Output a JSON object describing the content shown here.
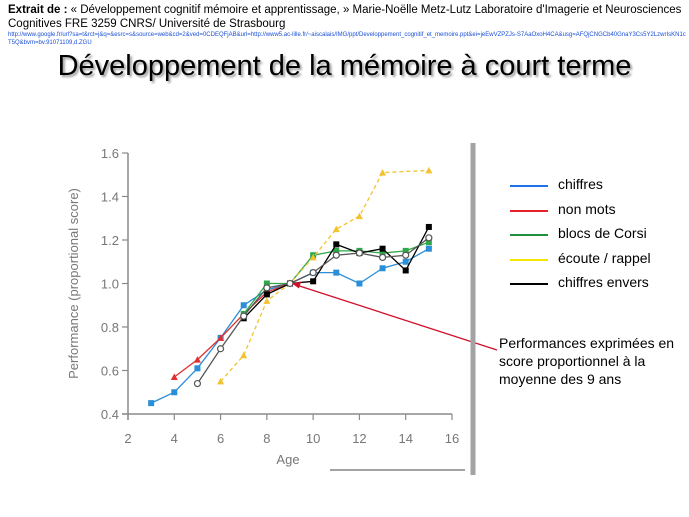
{
  "citation": {
    "prefix": "Extrait de :",
    "text": " « Développement cognitif mémoire et apprentissage, » Marie-Noëlle Metz-Lutz Laboratoire d'Imagerie et Neurosciences Cognitives FRE 3259 CNRS/ Université de Strasbourg",
    "url": "http://www.google.fr/url?sa=t&rct=j&q=&esrc=s&source=web&cd=2&ved=0CDEQFjAB&url=http://www5.ac-lille.fr/~aiscalais/IMG/ppt/Developpement_cognitif_et_memoire.ppt&ei=jeEwVZPZJs-S7AaOxoH4CA&usg=AFQjCNGCb40GnaY3Cs5Y2LzwrIsKN1cT5Q&bvm=bv.91071109,d.ZGU"
  },
  "slide_title": "Développement de la mémoire à court terme",
  "legend": [
    {
      "label": "chiffres",
      "color": "#1a73e8"
    },
    {
      "label": "non mots",
      "color": "#e8202a"
    },
    {
      "label": "blocs de Corsi",
      "color": "#1e8f3a"
    },
    {
      "label": "écoute / rappel",
      "color": "#f5e500"
    },
    {
      "label": "chiffres envers",
      "color": "#000000"
    }
  ],
  "annotation": "Performances exprimées en score proportionnel à la moyenne des 9 ans",
  "chart_data": {
    "type": "line",
    "title": "",
    "xlabel": "Age",
    "ylabel": "Performance (proportional score)",
    "xlim": [
      2,
      16
    ],
    "ylim": [
      0.4,
      1.6
    ],
    "xticks": [
      "2",
      "4",
      "6",
      "8",
      "10",
      "12",
      "14",
      "16"
    ],
    "yticks": [
      "0.4",
      "0.6",
      "0.8",
      "1.0",
      "1.2",
      "1.4",
      "1.6"
    ],
    "annotation_point": {
      "x": 9,
      "y": 1.0
    },
    "series": [
      {
        "name": "chiffres",
        "color": "#2a8fd8",
        "marker": "square",
        "x": [
          3,
          4,
          5,
          6,
          7,
          8,
          9,
          10,
          11,
          12,
          13,
          14,
          15
        ],
        "y": [
          0.45,
          0.5,
          0.61,
          0.75,
          0.9,
          0.97,
          1.0,
          1.05,
          1.05,
          1.0,
          1.07,
          1.1,
          1.16
        ]
      },
      {
        "name": "non mots",
        "color": "#e03030",
        "marker": "tri",
        "x": [
          4,
          5,
          6,
          7,
          8,
          9
        ],
        "y": [
          0.57,
          0.65,
          0.75,
          0.86,
          0.96,
          1.0
        ]
      },
      {
        "name": "blocs de Corsi",
        "color": "#2ea84a",
        "marker": "square",
        "x": [
          7,
          8,
          9,
          10,
          11,
          12,
          13,
          14,
          15
        ],
        "y": [
          0.86,
          1.0,
          1.0,
          1.13,
          1.15,
          1.15,
          1.14,
          1.15,
          1.19
        ]
      },
      {
        "name": "écoute / rappel",
        "color": "#f2c230",
        "marker": "tri",
        "dashed": true,
        "x": [
          6,
          7,
          8,
          9,
          10,
          11,
          12,
          13,
          15
        ],
        "y": [
          0.55,
          0.67,
          0.92,
          1.0,
          1.12,
          1.25,
          1.31,
          1.51,
          1.52
        ]
      },
      {
        "name": "chiffres envers",
        "color": "#000000",
        "marker": "square",
        "x": [
          7,
          8,
          9,
          10,
          11,
          12,
          13,
          14,
          15
        ],
        "y": [
          0.84,
          0.95,
          1.0,
          1.01,
          1.18,
          1.14,
          1.16,
          1.06,
          1.26
        ]
      },
      {
        "name": "",
        "color": "#555555",
        "marker": "circle",
        "x": [
          5,
          6,
          7,
          8,
          9,
          10,
          11,
          12,
          13,
          14,
          15
        ],
        "y": [
          0.54,
          0.7,
          0.85,
          0.98,
          1.0,
          1.05,
          1.13,
          1.14,
          1.12,
          1.13,
          1.21
        ]
      }
    ]
  }
}
